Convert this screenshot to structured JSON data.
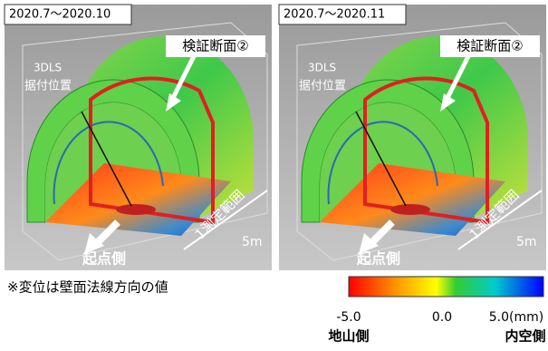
{
  "panels": [
    {
      "period": "2020.7～2020.10",
      "section": "検証断面②",
      "scanner": [
        "3DLS",
        "据付位置"
      ],
      "range": "1測定範囲",
      "length": "5m",
      "start": "起点側"
    },
    {
      "period": "2020.7～2020.11",
      "section": "検証断面②",
      "scanner": [
        "3DLS",
        "据付位置"
      ],
      "range": "1測定範囲",
      "length": "5m",
      "start": "起点側"
    }
  ],
  "note": "※変位は壁面法線方向の値",
  "colorbar": {
    "labels": [
      "-5.0",
      "0.0",
      "5.0(mm)"
    ],
    "left": "地山側",
    "right": "内空側"
  }
}
